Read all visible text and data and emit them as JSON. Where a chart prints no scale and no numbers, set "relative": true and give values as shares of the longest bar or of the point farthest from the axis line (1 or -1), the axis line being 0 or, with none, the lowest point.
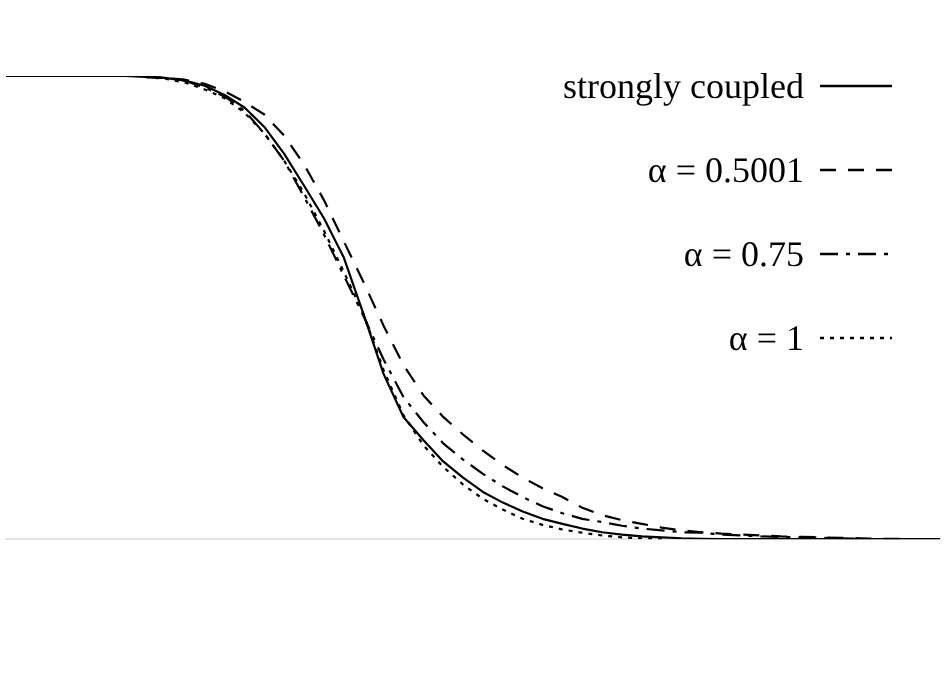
{
  "chart_data": {
    "type": "line",
    "relative": true,
    "legend": "top right",
    "categories": [
      null,
      null,
      null,
      null,
      null,
      null,
      null,
      null,
      null,
      null,
      null,
      null,
      null,
      null,
      null,
      null,
      null,
      null,
      null,
      null,
      null,
      null,
      null,
      null,
      null,
      null,
      null,
      null,
      null,
      null,
      null,
      null,
      null,
      null,
      null,
      null,
      null,
      null,
      null,
      null,
      null,
      null,
      null,
      null,
      null,
      null,
      null,
      null
    ],
    "series": [
      {
        "name": "strongly coupled",
        "color": "#000000",
        "line_style": "solid",
        "values": [
          1,
          1,
          1,
          1,
          1,
          1,
          1,
          0.998,
          0.996,
          0.99,
          0.979,
          0.959,
          0.932,
          0.89,
          0.832,
          0.763,
          0.693,
          0.608,
          0.485,
          0.357,
          0.264,
          0.214,
          0.168,
          0.133,
          0.102,
          0.079,
          0.06,
          0.044,
          0.033,
          0.023,
          0.015,
          0.01,
          0.006,
          0.004,
          0.002,
          0.001,
          0,
          0,
          0,
          0,
          0,
          0,
          0,
          0,
          0,
          0,
          0,
          0
        ]
      },
      {
        "name": "α = 0.5001",
        "color": "#000000",
        "line_style": "dashed",
        "values": [
          null,
          null,
          null,
          null,
          null,
          null,
          null,
          0.998,
          0.996,
          0.992,
          0.983,
          0.967,
          0.944,
          0.917,
          0.871,
          0.809,
          0.732,
          0.643,
          0.554,
          0.461,
          0.376,
          0.311,
          0.264,
          0.226,
          0.191,
          0.16,
          0.133,
          0.11,
          0.091,
          0.068,
          0.052,
          0.041,
          0.033,
          0.025,
          0.019,
          0.015,
          0.012,
          0.01,
          0.008,
          0.006,
          0.005,
          0.004,
          0.003,
          0.002,
          0.001,
          0.001,
          null,
          null
        ]
      },
      {
        "name": "α = 0.75",
        "color": "#000000",
        "line_style": "dashdot",
        "values": [
          null,
          null,
          null,
          null,
          null,
          null,
          null,
          0.998,
          0.996,
          0.99,
          0.975,
          0.956,
          0.925,
          0.876,
          0.817,
          0.739,
          0.658,
          0.569,
          0.481,
          0.388,
          0.307,
          0.253,
          0.207,
          0.172,
          0.141,
          0.114,
          0.091,
          0.071,
          0.056,
          0.044,
          0.037,
          0.029,
          0.023,
          0.019,
          0.015,
          0.014,
          0.01,
          0.008,
          0.006,
          0.005,
          0.004,
          0.003,
          0.002,
          0.001,
          null,
          null,
          null,
          null
        ]
      },
      {
        "name": "α = 1",
        "color": "#000000",
        "line_style": "dotted",
        "values": [
          null,
          null,
          null,
          null,
          null,
          null,
          null,
          0.998,
          0.994,
          0.986,
          0.971,
          0.952,
          0.921,
          0.876,
          0.817,
          0.747,
          0.666,
          0.577,
          0.485,
          0.365,
          0.268,
          0.203,
          0.156,
          0.118,
          0.087,
          0.064,
          0.044,
          0.031,
          0.021,
          0.014,
          0.008,
          0.004,
          0.002,
          0,
          null,
          null,
          null,
          null,
          null,
          null,
          null,
          null,
          null,
          null,
          null,
          null,
          null,
          null
        ]
      }
    ]
  }
}
